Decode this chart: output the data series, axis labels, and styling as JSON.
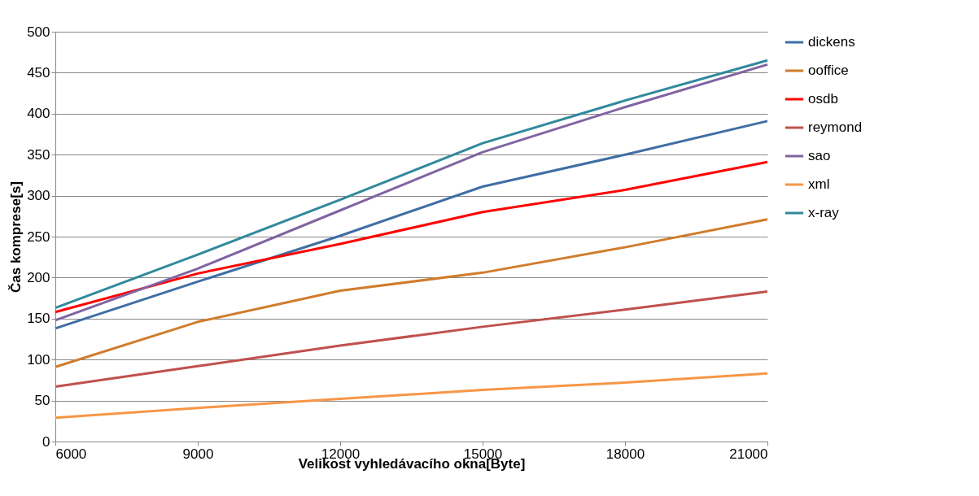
{
  "chart_data": {
    "type": "line",
    "xlabel": "Velikost vyhledávacího okna[Byte]",
    "ylabel": "Čas komprese[s]",
    "x": [
      6000,
      9000,
      12000,
      15000,
      18000,
      21000
    ],
    "xlim": [
      6000,
      21000
    ],
    "xticks": [
      6000,
      9000,
      12000,
      15000,
      18000,
      21000
    ],
    "ylim": [
      0,
      500
    ],
    "yticks": [
      0,
      50,
      100,
      150,
      200,
      250,
      300,
      350,
      400,
      450,
      500
    ],
    "grid": "y",
    "legend": "right",
    "marker": "none",
    "line_style": "solid",
    "series": [
      {
        "name": "dickens",
        "color": "#3f6ea4",
        "values": [
          138,
          195,
          251,
          311,
          350,
          391
        ]
      },
      {
        "name": "ooffice",
        "color": "#d07c2c",
        "values": [
          91,
          146,
          184,
          206,
          237,
          271
        ]
      },
      {
        "name": "osdb",
        "color": "#ff0000",
        "values": [
          158,
          205,
          241,
          280,
          307,
          341
        ]
      },
      {
        "name": "reymond",
        "color": "#c0504d",
        "values": [
          67,
          92,
          117,
          140,
          161,
          183
        ]
      },
      {
        "name": "sao",
        "color": "#8064a2",
        "values": [
          148,
          211,
          282,
          353,
          408,
          460
        ]
      },
      {
        "name": "xml",
        "color": "#f79646",
        "values": [
          29,
          41,
          52,
          63,
          72,
          83
        ]
      },
      {
        "name": "x-ray",
        "color": "#31899c",
        "values": [
          163,
          228,
          295,
          364,
          416,
          465
        ]
      }
    ]
  }
}
